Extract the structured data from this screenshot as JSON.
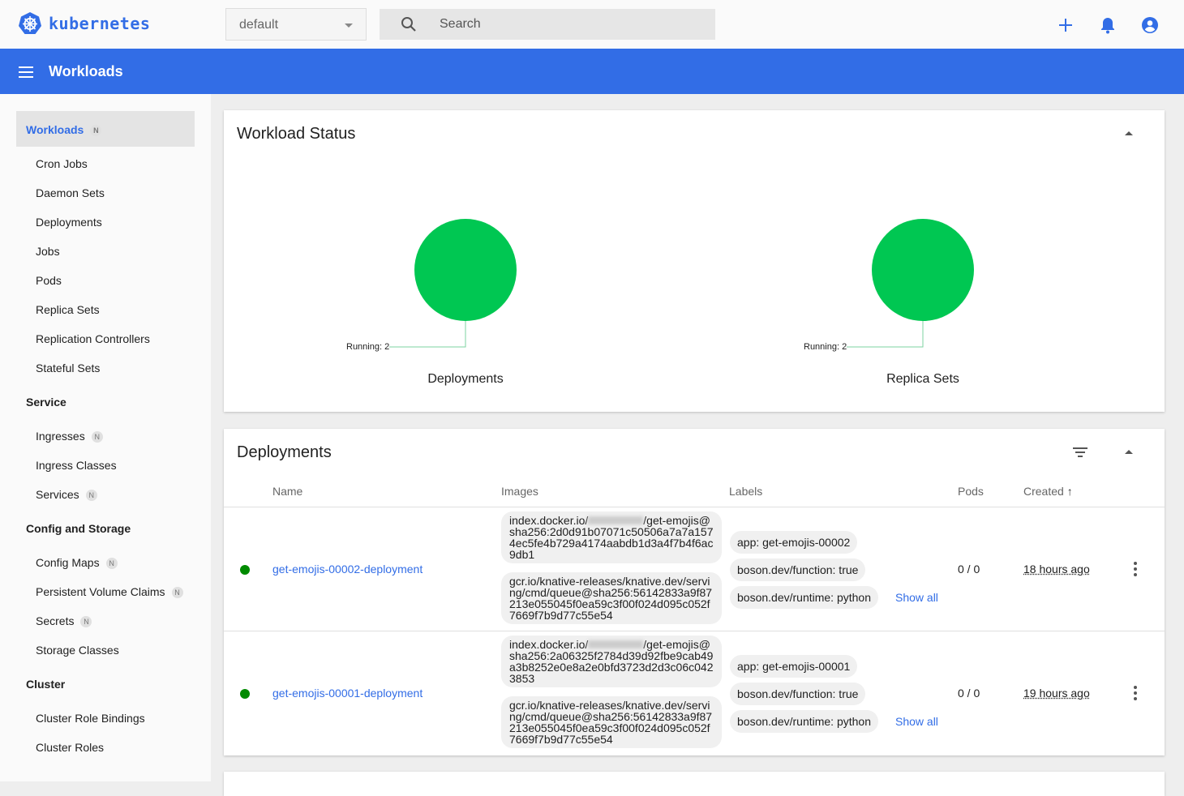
{
  "header": {
    "logo": "kubernetes",
    "namespace": "default",
    "search_placeholder": "Search"
  },
  "toolbar": {
    "title": "Workloads"
  },
  "sidebar": {
    "workloads": {
      "label": "Workloads",
      "badge": "N",
      "items": [
        "Cron Jobs",
        "Daemon Sets",
        "Deployments",
        "Jobs",
        "Pods",
        "Replica Sets",
        "Replication Controllers",
        "Stateful Sets"
      ]
    },
    "service": {
      "label": "Service",
      "items": [
        {
          "label": "Ingresses",
          "badge": "N"
        },
        {
          "label": "Ingress Classes"
        },
        {
          "label": "Services",
          "badge": "N"
        }
      ]
    },
    "config": {
      "label": "Config and Storage",
      "items": [
        {
          "label": "Config Maps",
          "badge": "N"
        },
        {
          "label": "Persistent Volume Claims",
          "badge": "N"
        },
        {
          "label": "Secrets",
          "badge": "N"
        },
        {
          "label": "Storage Classes"
        }
      ]
    },
    "cluster": {
      "label": "Cluster",
      "items": [
        "Cluster Role Bindings",
        "Cluster Roles"
      ]
    }
  },
  "status": {
    "title": "Workload Status",
    "charts": [
      {
        "label": "Deployments",
        "legend": "Running: 2",
        "running": 2,
        "color": "#00c752"
      },
      {
        "label": "Replica Sets",
        "legend": "Running: 2",
        "running": 2,
        "color": "#00c752"
      }
    ]
  },
  "deployments": {
    "title": "Deployments",
    "columns": [
      "Name",
      "Images",
      "Labels",
      "Pods",
      "Created"
    ],
    "rows": [
      {
        "name": "get-emojis-00002-deployment",
        "image1_prefix": "index.docker.io/",
        "image1_suffix": "/get-emojis@sha256:2d0d91b07071c50506a7a7a1574ec5fe4b729a4174aabdb1d3a4f7b4f6ac9db1",
        "image2": "gcr.io/knative-releases/knative.dev/serving/cmd/queue@sha256:56142833a9f87213e055045f0ea59c3f00f024d095c052f7669f7b9d77c55e54",
        "labels": [
          "app: get-emojis-00002",
          "boson.dev/function: true",
          "boson.dev/runtime: python"
        ],
        "show_all": "Show all",
        "pods": "0 / 0",
        "created": "18 hours ago"
      },
      {
        "name": "get-emojis-00001-deployment",
        "image1_prefix": "index.docker.io/",
        "image1_suffix": "/get-emojis@sha256:2a06325f2784d39d92fbe9cab49a3b8252e0e8a2e0bfd3723d2d3c06c0423853",
        "image2": "gcr.io/knative-releases/knative.dev/serving/cmd/queue@sha256:56142833a9f87213e055045f0ea59c3f00f024d095c052f7669f7b9d77c55e54",
        "labels": [
          "app: get-emojis-00001",
          "boson.dev/function: true",
          "boson.dev/runtime: python"
        ],
        "show_all": "Show all",
        "pods": "0 / 0",
        "created": "19 hours ago"
      }
    ]
  },
  "colors": {
    "brand": "#326de6",
    "running": "#00c752",
    "status_ok": "#008a00"
  }
}
